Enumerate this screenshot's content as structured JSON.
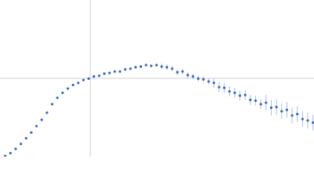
{
  "chart_data": {
    "type": "scatter",
    "xlim": [
      0,
      6.02
    ],
    "ylim": [
      0,
      2.208
    ],
    "xref": 1.732,
    "yref": 1.104,
    "color": "#3a66c0",
    "error_color": "#a9bde6",
    "x": [
      0.1,
      0.2,
      0.3,
      0.4,
      0.5,
      0.6,
      0.7,
      0.8,
      0.9,
      1.0,
      1.1,
      1.2,
      1.3,
      1.4,
      1.5,
      1.6,
      1.7,
      1.8,
      1.9,
      2.0,
      2.1,
      2.2,
      2.3,
      2.4,
      2.5,
      2.6,
      2.7,
      2.8,
      2.9,
      3.0,
      3.1,
      3.2,
      3.3,
      3.4,
      3.5,
      3.6,
      3.7,
      3.8,
      3.9,
      4.0,
      4.1,
      4.2,
      4.3,
      4.4,
      4.5,
      4.6,
      4.7,
      4.8,
      4.9,
      5.0,
      5.1,
      5.2,
      5.3,
      5.4,
      5.5,
      5.6,
      5.7,
      5.8,
      5.9,
      6.0
    ],
    "values": [
      0.01,
      0.05,
      0.11,
      0.18,
      0.26,
      0.34,
      0.43,
      0.52,
      0.62,
      0.74,
      0.83,
      0.9,
      0.96,
      1.01,
      1.04,
      1.08,
      1.1,
      1.13,
      1.14,
      1.17,
      1.18,
      1.2,
      1.2,
      1.23,
      1.24,
      1.26,
      1.27,
      1.29,
      1.28,
      1.29,
      1.27,
      1.26,
      1.24,
      1.19,
      1.2,
      1.15,
      1.13,
      1.1,
      1.09,
      1.06,
      1.04,
      0.98,
      0.97,
      0.92,
      0.9,
      0.86,
      0.87,
      0.8,
      0.79,
      0.74,
      0.76,
      0.69,
      0.7,
      0.64,
      0.66,
      0.58,
      0.6,
      0.53,
      0.51,
      0.48
    ],
    "errors": [
      0.01,
      0.01,
      0.01,
      0.01,
      0.01,
      0.01,
      0.01,
      0.01,
      0.01,
      0.01,
      0.01,
      0.01,
      0.01,
      0.01,
      0.01,
      0.01,
      0.01,
      0.01,
      0.01,
      0.01,
      0.02,
      0.02,
      0.02,
      0.02,
      0.02,
      0.02,
      0.02,
      0.02,
      0.02,
      0.02,
      0.04,
      0.04,
      0.04,
      0.04,
      0.04,
      0.04,
      0.04,
      0.04,
      0.04,
      0.04,
      0.07,
      0.07,
      0.07,
      0.07,
      0.07,
      0.07,
      0.07,
      0.07,
      0.07,
      0.07,
      0.11,
      0.11,
      0.11,
      0.11,
      0.11,
      0.11,
      0.11,
      0.11,
      0.11,
      0.11
    ]
  }
}
